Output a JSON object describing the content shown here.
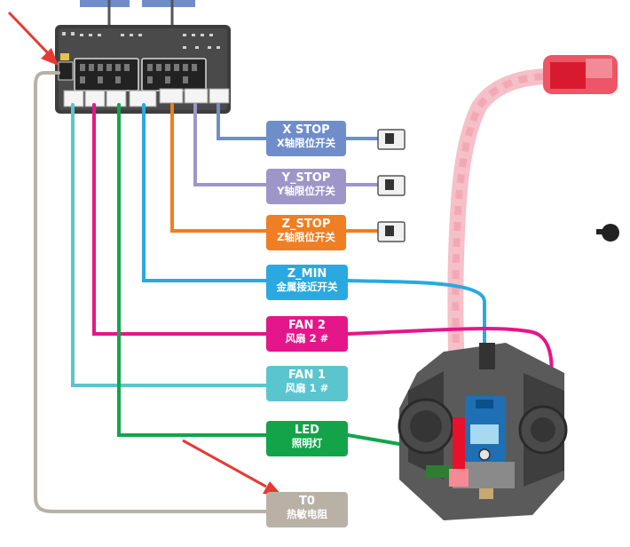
{
  "colors": {
    "xstop": "#6f8ec9",
    "ystop": "#9e96c8",
    "zstop": "#f07e22",
    "zmin": "#29a9e0",
    "fan2": "#e5168a",
    "fan1": "#5bc5cf",
    "led": "#13a44a",
    "t0": "#b9b1a6",
    "board": "#3b3b3b",
    "arrow": "#e53935",
    "hotend_red": "#e8102a"
  },
  "labels": {
    "xstop": {
      "line1": "X  STOP",
      "line2": "X轴限位开关"
    },
    "ystop": {
      "line1": "Y_STOP",
      "line2": "Y轴限位开关"
    },
    "zstop": {
      "line1": "Z_STOP",
      "line2": "Z轴限位开关"
    },
    "zmin": {
      "line1": "Z_MIN",
      "line2": "金属接近开关"
    },
    "fan2": {
      "line1": "FAN 2",
      "line2": "风扇 2 #"
    },
    "fan1": {
      "line1": "FAN 1",
      "line2": "风扇 1 #"
    },
    "led": {
      "line1": "LED",
      "line2": "照明灯"
    },
    "t0": {
      "line1": "T0",
      "line2": "热敏电阻"
    }
  },
  "icons": {
    "board": "controller-board-icon",
    "endstop": "limit-switch-icon",
    "hotend": "hotend-assembly-icon",
    "knob": "knob-icon",
    "arrow": "red-arrow-icon"
  }
}
